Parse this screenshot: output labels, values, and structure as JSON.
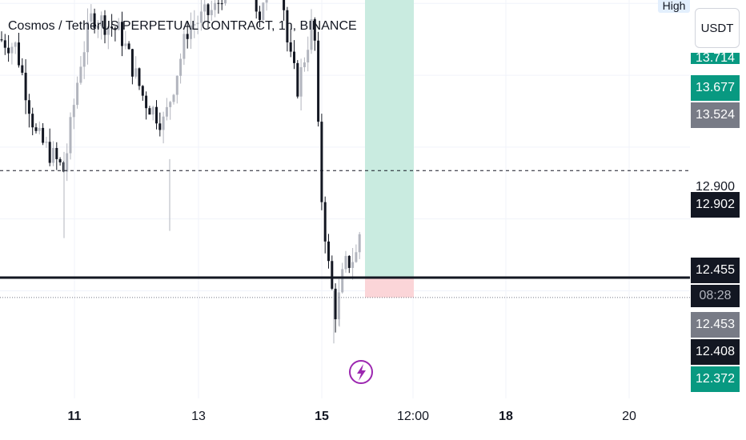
{
  "title": "Cosmos / TetherUS PERPETUAL CONTRACT, 1h, BINANCE",
  "top_tag": "High",
  "currency": "USDT",
  "price_labels": [
    {
      "text": "13.714",
      "bg": "#089981",
      "fg": "#ffffff"
    },
    {
      "text": "13.677",
      "bg": "#089981",
      "fg": "#ffffff"
    },
    {
      "text": "13.524",
      "bg": "#787b86",
      "fg": "#ffffff"
    },
    {
      "text": "12.900",
      "bg": "#ffffff",
      "fg": "#131722"
    },
    {
      "text": "12.902",
      "bg": "#131722",
      "fg": "#ffffff"
    },
    {
      "text": "12.455",
      "bg": "#131722",
      "fg": "#ffffff"
    },
    {
      "text": "08:28",
      "bg": "#131722",
      "fg": "#b2b5be"
    },
    {
      "text": "12.453",
      "bg": "#787b86",
      "fg": "#ffffff"
    },
    {
      "text": "12.408",
      "bg": "#131722",
      "fg": "#ffffff"
    },
    {
      "text": "12.372",
      "bg": "#089981",
      "fg": "#ffffff"
    }
  ],
  "x_labels": [
    {
      "text": "11",
      "bold": true
    },
    {
      "text": "13",
      "bold": false
    },
    {
      "text": "15",
      "bold": true
    },
    {
      "text": "12:00",
      "bold": false
    },
    {
      "text": "18",
      "bold": true
    },
    {
      "text": "20",
      "bold": false
    }
  ],
  "chart_data": {
    "type": "candlestick",
    "symbol": "Cosmos / TetherUS PERPETUAL CONTRACT",
    "interval": "1h",
    "exchange": "BINANCE",
    "quote_currency": "USDT",
    "x_axis_ticks": [
      "11",
      "13",
      "15",
      "12:00",
      "18",
      "20"
    ],
    "horizontal_lines": [
      {
        "price": 13.677,
        "style": "solid",
        "color": "#089981"
      },
      {
        "price": 12.902,
        "style": "dashed",
        "color": "#131722"
      },
      {
        "price": 12.455,
        "style": "solid-thick",
        "color": "#131722"
      },
      {
        "price": 12.372,
        "style": "dotted",
        "color": "#787b86"
      }
    ],
    "position_tool": {
      "entry": 12.455,
      "take_profit": 13.714,
      "stop_loss": 12.372
    },
    "last_price": 12.455,
    "countdown": "08:28",
    "colors": {
      "up": "#b2b5be",
      "down": "#131722",
      "profit_zone": "#c9ebe0",
      "loss_zone": "#fbd5d8",
      "accent": "#089981"
    }
  }
}
